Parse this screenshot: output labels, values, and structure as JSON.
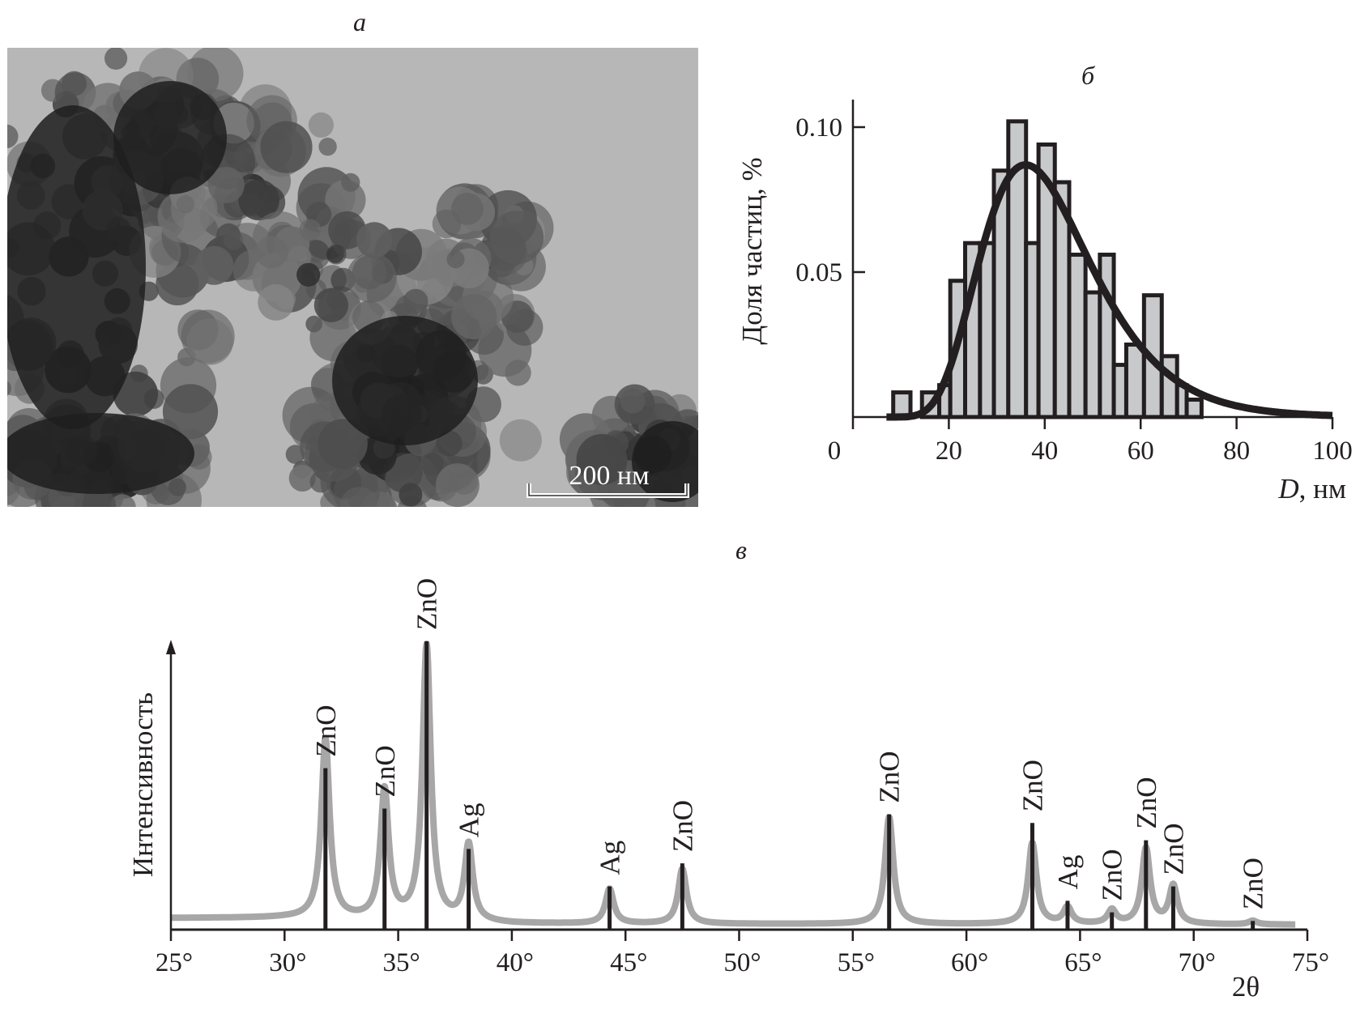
{
  "panels": {
    "a": {
      "label": "а",
      "scale_bar": "200 нм"
    },
    "b": {
      "label": "б"
    },
    "c": {
      "label": "в"
    }
  },
  "colors": {
    "ink": "#231f20",
    "bar_fill": "#c8c9cb",
    "pattern": "#a7a7a7"
  },
  "chart_data": [
    {
      "id": "size-distribution",
      "type": "bar",
      "title": "б",
      "xlabel_var": "D",
      "xlabel_unit": ", нм",
      "ylabel": "Доля частиц, %",
      "xlim": [
        0,
        100
      ],
      "ylim": [
        0,
        0.11
      ],
      "x_origin_label": "0",
      "xticks": [
        {
          "value": 20,
          "label": "20"
        },
        {
          "value": 40,
          "label": "40"
        },
        {
          "value": 60,
          "label": "60"
        },
        {
          "value": 80,
          "label": "80"
        },
        {
          "value": 100,
          "label": "100"
        }
      ],
      "yticks": [
        {
          "value": 0.05,
          "label": "0.05"
        },
        {
          "value": 0.1,
          "label": "0.10"
        }
      ],
      "bins": [
        {
          "from": 8.4,
          "to": 12.0,
          "value": 0.0085
        },
        {
          "from": 14.4,
          "to": 18.0,
          "value": 0.0085
        },
        {
          "from": 18.0,
          "to": 20.3,
          "value": 0.011
        },
        {
          "from": 20.3,
          "to": 23.4,
          "value": 0.047
        },
        {
          "from": 23.4,
          "to": 26.5,
          "value": 0.06
        },
        {
          "from": 26.5,
          "to": 29.4,
          "value": 0.06
        },
        {
          "from": 29.4,
          "to": 32.4,
          "value": 0.085
        },
        {
          "from": 32.4,
          "to": 36.1,
          "value": 0.102
        },
        {
          "from": 36.1,
          "to": 38.7,
          "value": 0.06
        },
        {
          "from": 38.7,
          "to": 42.1,
          "value": 0.094
        },
        {
          "from": 42.1,
          "to": 45.1,
          "value": 0.081
        },
        {
          "from": 45.1,
          "to": 48.5,
          "value": 0.056
        },
        {
          "from": 48.5,
          "to": 51.5,
          "value": 0.043
        },
        {
          "from": 51.5,
          "to": 54.4,
          "value": 0.056
        },
        {
          "from": 54.4,
          "to": 57.0,
          "value": 0.018
        },
        {
          "from": 57.0,
          "to": 60.7,
          "value": 0.025
        },
        {
          "from": 60.7,
          "to": 64.4,
          "value": 0.042
        },
        {
          "from": 64.4,
          "to": 67.6,
          "value": 0.021
        },
        {
          "from": 67.6,
          "to": 69.6,
          "value": 0.011
        },
        {
          "from": 69.6,
          "to": 72.7,
          "value": 0.006
        }
      ],
      "fit": {
        "type": "lognormal",
        "peak_value": 0.087,
        "median_nm": 36,
        "sigma": 0.32,
        "range": [
          7,
          100
        ]
      }
    },
    {
      "id": "xrd-pattern",
      "type": "line",
      "title": "в",
      "xlabel": "2θ",
      "ylabel": "Интенсивность",
      "xlim": [
        25,
        75
      ],
      "ylim": [
        0,
        100
      ],
      "xticks": [
        {
          "value": 25,
          "label": "25°"
        },
        {
          "value": 30,
          "label": "30°"
        },
        {
          "value": 35,
          "label": "35°"
        },
        {
          "value": 40,
          "label": "40°"
        },
        {
          "value": 45,
          "label": "45°"
        },
        {
          "value": 50,
          "label": "50°"
        },
        {
          "value": 55,
          "label": "55°"
        },
        {
          "value": 60,
          "label": "60°"
        },
        {
          "value": 65,
          "label": "65°"
        },
        {
          "value": 70,
          "label": "70°"
        },
        {
          "value": 75,
          "label": "75°"
        }
      ],
      "pattern_range": [
        25,
        74.5
      ],
      "background": [
        {
          "x": 25,
          "y": 4
        },
        {
          "x": 30,
          "y": 4
        },
        {
          "x": 40,
          "y": 2
        },
        {
          "x": 74.5,
          "y": 1.7
        }
      ],
      "peaks": [
        {
          "phase": "ZnO",
          "two_theta": 31.8,
          "stick": 56,
          "observed": 66
        },
        {
          "phase": "ZnO",
          "two_theta": 34.4,
          "stick": 42,
          "observed": 48
        },
        {
          "phase": "ZnO",
          "two_theta": 36.25,
          "stick": 100,
          "observed": 98
        },
        {
          "phase": "Ag",
          "two_theta": 38.1,
          "stick": 28,
          "observed": 29
        },
        {
          "phase": "Ag",
          "two_theta": 44.3,
          "stick": 15,
          "observed": 14
        },
        {
          "phase": "ZnO",
          "two_theta": 47.5,
          "stick": 23,
          "observed": 21
        },
        {
          "phase": "ZnO",
          "two_theta": 56.6,
          "stick": 40,
          "observed": 39
        },
        {
          "phase": "ZnO",
          "two_theta": 62.9,
          "stick": 37,
          "observed": 30
        },
        {
          "phase": "Ag",
          "two_theta": 64.45,
          "stick": 10,
          "observed": 7.5
        },
        {
          "phase": "ZnO",
          "two_theta": 66.4,
          "stick": 6,
          "observed": 6.5
        },
        {
          "phase": "ZnO",
          "two_theta": 67.9,
          "stick": 31,
          "observed": 28
        },
        {
          "phase": "ZnO",
          "two_theta": 69.1,
          "stick": 15,
          "observed": 15
        },
        {
          "phase": "ZnO",
          "two_theta": 72.6,
          "stick": 3,
          "observed": 3
        }
      ]
    }
  ]
}
